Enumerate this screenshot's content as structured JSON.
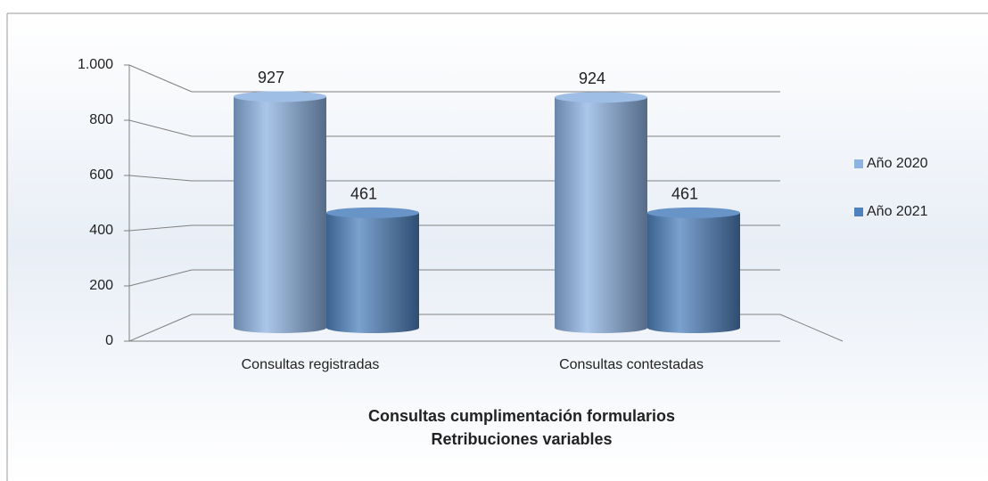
{
  "chart_data": {
    "type": "bar",
    "title": "Consultas cumplimentación formularios",
    "subtitle": "Retribuciones variables",
    "categories": [
      "Consultas registradas",
      "Consultas contestadas"
    ],
    "series": [
      {
        "name": "Año 2020",
        "color": "#8db3e2",
        "values": [
          927,
          924
        ]
      },
      {
        "name": "Año 2021",
        "color": "#4f81bd",
        "values": [
          461,
          461
        ]
      }
    ],
    "ylim": [
      0,
      1000
    ],
    "yticks": [
      0,
      200,
      400,
      600,
      800,
      {
        "value": 1000,
        "label": "1.000"
      }
    ],
    "grid": true,
    "legend": "right"
  }
}
